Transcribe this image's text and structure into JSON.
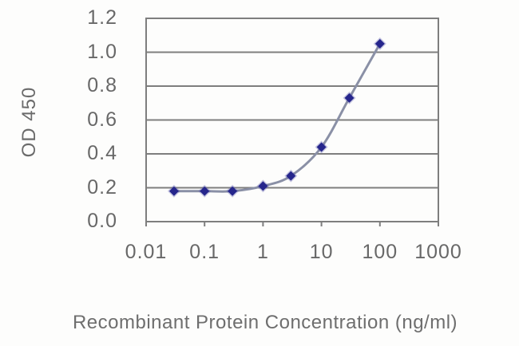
{
  "figure": {
    "background_color": "#fdfdfc"
  },
  "chart_data": {
    "type": "line",
    "x": [
      0.03,
      0.1,
      0.3,
      1,
      3,
      10,
      30,
      100
    ],
    "series": [
      {
        "name": "OD 450",
        "values": [
          0.18,
          0.18,
          0.18,
          0.21,
          0.27,
          0.44,
          0.73,
          1.05
        ]
      }
    ],
    "title": "",
    "xlabel": "Recombinant Protein Concentration (ng/ml)",
    "ylabel": "OD 450",
    "x_scale": "log",
    "xlim": [
      0.01,
      1000
    ],
    "ylim": [
      0.0,
      1.2
    ],
    "x_tick_labels": [
      "0.01",
      "0.1",
      "1",
      "10",
      "100",
      "1000"
    ],
    "y_tick_labels": [
      "0.0",
      "0.2",
      "0.4",
      "0.6",
      "0.8",
      "1.0",
      "1.2"
    ],
    "grid": true,
    "legend": false,
    "marker_shape": "diamond",
    "colors": {
      "grid": "#7e7e7e",
      "frame": "#7e7e7e",
      "line": "#8a90a6",
      "marker": "#26268c",
      "marker_halo": "#5d5dab",
      "tick_text": "#686868",
      "axis_title_text": "#6e6e6e"
    }
  }
}
